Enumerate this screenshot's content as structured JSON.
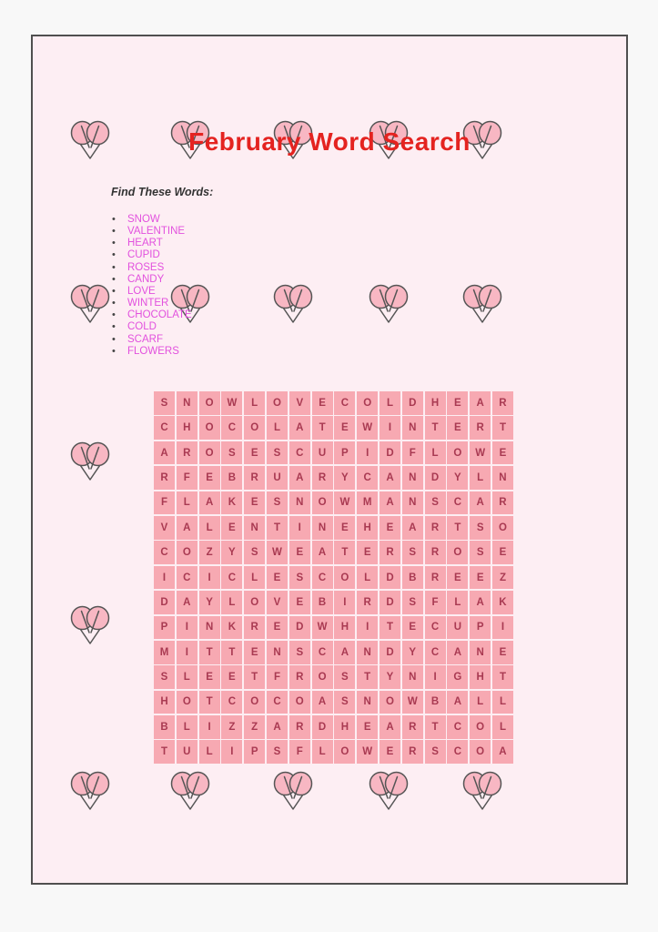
{
  "page": {
    "title": "February Word Search",
    "find_words_heading": "Find These Words:"
  },
  "word_list": [
    "SNOW",
    "VALENTINE",
    "HEART",
    "CUPID",
    "ROSES",
    "CANDY",
    "LOVE",
    "WINTER",
    "CHOCOLATE",
    "COLD",
    "SCARF",
    "FLOWERS"
  ],
  "grid": {
    "columns": 16,
    "rows": [
      "SNOWLOVECOLDHEAR",
      "CHOCOLATEWINTERT",
      "AROSESCUPIDFLOWE",
      "RFEBRUARYCANDYLN",
      "FLAKESNOWMANSCAR",
      "VALENTINEHEARTSO",
      "COZYSWEATERSROSE",
      "ICICLESCOLDBREEZ",
      "DAYLOVEBIRDSFLAK",
      "PINKREDWHITECUPI",
      "MITTENSCANDYCANE",
      "SLEETFROSTYNIGHT",
      "HOTCOCOASNOWBALL",
      "BLIZZARDHEARTCOL",
      "TULIPSFLOWERSCOA"
    ]
  },
  "icons": {
    "decoration": "double-bubble-heart-icon"
  },
  "colors": {
    "page_background": "#f8f8f8",
    "sheet_background": "#fdeef3",
    "sheet_border": "#4f4f4f",
    "title": "#e42320",
    "heading_text": "#333333",
    "word_list_text": "#e251de",
    "bullet": "#444444",
    "grid_cell_background": "#f7a9b2",
    "grid_letter": "#a93a52",
    "heart_fill": "#f8b7c3",
    "heart_outline": "#555555"
  }
}
